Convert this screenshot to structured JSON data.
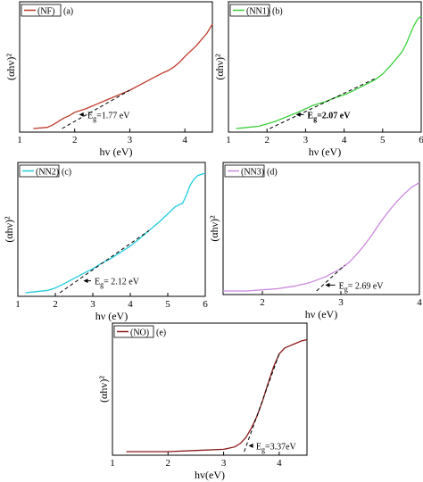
{
  "chart_data": [
    {
      "id": "a",
      "type": "line",
      "panel_label": "(a)",
      "legend_label": "(NF)",
      "xlabel": "hv (eV)",
      "ylabel": "(αhv)²",
      "xlim": [
        1,
        4.5
      ],
      "ylim": [
        0,
        1
      ],
      "xticks": [
        1,
        2,
        3,
        4
      ],
      "color": "#c0392b",
      "series": [
        {
          "x": [
            1.25,
            1.5,
            1.6,
            1.7,
            1.8,
            1.9,
            2.0,
            2.2,
            2.4,
            2.6,
            2.8,
            3.0,
            3.2,
            3.4,
            3.6,
            3.7,
            3.8,
            3.9,
            4.0,
            4.2,
            4.4,
            4.5
          ],
          "y": [
            0.0,
            0.01,
            0.03,
            0.06,
            0.09,
            0.11,
            0.14,
            0.17,
            0.21,
            0.25,
            0.29,
            0.33,
            0.38,
            0.43,
            0.48,
            0.5,
            0.53,
            0.57,
            0.62,
            0.71,
            0.82,
            0.9
          ]
        }
      ],
      "tangent": {
        "x": [
          1.77,
          3.0
        ],
        "y": [
          0.0,
          0.33
        ]
      },
      "annotation": {
        "prefix": "E",
        "sub": "g",
        "value": "=1.77 eV",
        "at": [
          2.2,
          0.12
        ],
        "arrow_to": [
          2.08,
          0.12
        ],
        "bold": false
      }
    },
    {
      "id": "b",
      "type": "line",
      "panel_label": "(b)",
      "legend_label": "(NN1)",
      "xlabel": "hν (eV)",
      "ylabel": "(αhν)²",
      "xlim": [
        1,
        6
      ],
      "ylim": [
        0,
        1
      ],
      "xticks": [
        1,
        2,
        3,
        4,
        5,
        6
      ],
      "color": "#3ccf3c",
      "series": [
        {
          "x": [
            1.2,
            1.5,
            1.8,
            2.0,
            2.2,
            2.5,
            2.8,
            3.0,
            3.2,
            3.5,
            3.8,
            4.0,
            4.2,
            4.5,
            4.8,
            5.0,
            5.2,
            5.4,
            5.5,
            5.6,
            5.7,
            5.8,
            5.9,
            6.0
          ],
          "y": [
            0.0,
            0.01,
            0.02,
            0.04,
            0.06,
            0.1,
            0.14,
            0.17,
            0.2,
            0.23,
            0.27,
            0.29,
            0.32,
            0.37,
            0.42,
            0.47,
            0.54,
            0.62,
            0.66,
            0.72,
            0.8,
            0.88,
            0.94,
            0.97
          ]
        }
      ],
      "tangent": {
        "x": [
          2.07,
          4.8
        ],
        "y": [
          0.0,
          0.43
        ]
      },
      "annotation": {
        "prefix": "E",
        "sub": "g",
        "value": "=2.07 eV",
        "at": [
          3.0,
          0.12
        ],
        "arrow_to": [
          2.75,
          0.12
        ],
        "bold": true
      }
    },
    {
      "id": "c",
      "type": "line",
      "panel_label": "(c)",
      "legend_label": "(NN2)",
      "xlabel": "hν (eV)",
      "ylabel": "(αhν)²",
      "xlim": [
        1,
        6
      ],
      "ylim": [
        0,
        1
      ],
      "xticks": [
        1,
        2,
        3,
        4,
        5,
        6
      ],
      "color": "#22ccdd",
      "series": [
        {
          "x": [
            1.2,
            1.5,
            1.8,
            2.0,
            2.2,
            2.5,
            2.8,
            3.0,
            3.2,
            3.5,
            3.8,
            4.0,
            4.2,
            4.5,
            4.8,
            5.0,
            5.2,
            5.4,
            5.5,
            5.6,
            5.7,
            5.8,
            5.9,
            6.0
          ],
          "y": [
            0.0,
            0.01,
            0.02,
            0.04,
            0.07,
            0.12,
            0.17,
            0.2,
            0.24,
            0.29,
            0.35,
            0.39,
            0.44,
            0.52,
            0.6,
            0.66,
            0.72,
            0.75,
            0.82,
            0.9,
            0.95,
            0.98,
            0.99,
            1.0
          ]
        }
      ],
      "tangent": {
        "x": [
          2.12,
          4.5
        ],
        "y": [
          0.0,
          0.52
        ]
      },
      "annotation": {
        "prefix": "E",
        "sub": "g",
        "value": "= 2.12 eV",
        "at": [
          3.0,
          0.1
        ],
        "arrow_to": [
          2.75,
          0.1
        ],
        "bold": false
      }
    },
    {
      "id": "d",
      "type": "line",
      "panel_label": "(d)",
      "legend_label": "(NN3)",
      "xlabel": "hν (eV)",
      "ylabel": "(αhν)²",
      "xlim": [
        1.5,
        4
      ],
      "ylim": [
        0,
        1
      ],
      "xticks": [
        2,
        3,
        4
      ],
      "color": "#cc88dd",
      "series": [
        {
          "x": [
            1.5,
            1.8,
            2.0,
            2.2,
            2.4,
            2.6,
            2.8,
            3.0,
            3.1,
            3.2,
            3.3,
            3.4,
            3.5,
            3.6,
            3.7,
            3.8,
            3.9,
            4.0
          ],
          "y": [
            0.0,
            0.0,
            0.01,
            0.02,
            0.04,
            0.07,
            0.12,
            0.19,
            0.24,
            0.31,
            0.39,
            0.48,
            0.58,
            0.67,
            0.75,
            0.82,
            0.88,
            0.92
          ]
        }
      ],
      "tangent": {
        "x": [
          2.69,
          3.05
        ],
        "y": [
          0.0,
          0.22
        ]
      },
      "annotation": {
        "prefix": "E",
        "sub": "g",
        "value": "= 2.69 eV",
        "at": [
          2.95,
          0.05
        ],
        "arrow_to": [
          2.8,
          0.05
        ],
        "bold": false
      }
    },
    {
      "id": "e",
      "type": "line",
      "panel_label": "(e)",
      "legend_label": "(NO)",
      "xlabel": "hv(eV)",
      "ylabel": "(αhv)²",
      "xlim": [
        1,
        4.5
      ],
      "ylim": [
        0,
        1
      ],
      "xticks": [
        1,
        2,
        3,
        4
      ],
      "color": "#8b1a1a",
      "series": [
        {
          "x": [
            1.25,
            1.5,
            2.0,
            2.5,
            3.0,
            3.2,
            3.3,
            3.4,
            3.5,
            3.6,
            3.7,
            3.8,
            3.9,
            4.0,
            4.1,
            4.2,
            4.3,
            4.4,
            4.5
          ],
          "y": [
            0.0,
            0.0,
            0.0,
            0.01,
            0.02,
            0.04,
            0.07,
            0.12,
            0.2,
            0.3,
            0.43,
            0.58,
            0.72,
            0.83,
            0.88,
            0.9,
            0.92,
            0.94,
            0.95
          ]
        }
      ],
      "tangent": {
        "x": [
          3.37,
          4.0
        ],
        "y": [
          0.0,
          0.83
        ]
      },
      "annotation": {
        "prefix": "E",
        "sub": "g",
        "value": "=3.37eV",
        "at": [
          3.55,
          0.05
        ],
        "arrow_to": [
          3.45,
          0.05
        ],
        "bold": false
      }
    }
  ]
}
